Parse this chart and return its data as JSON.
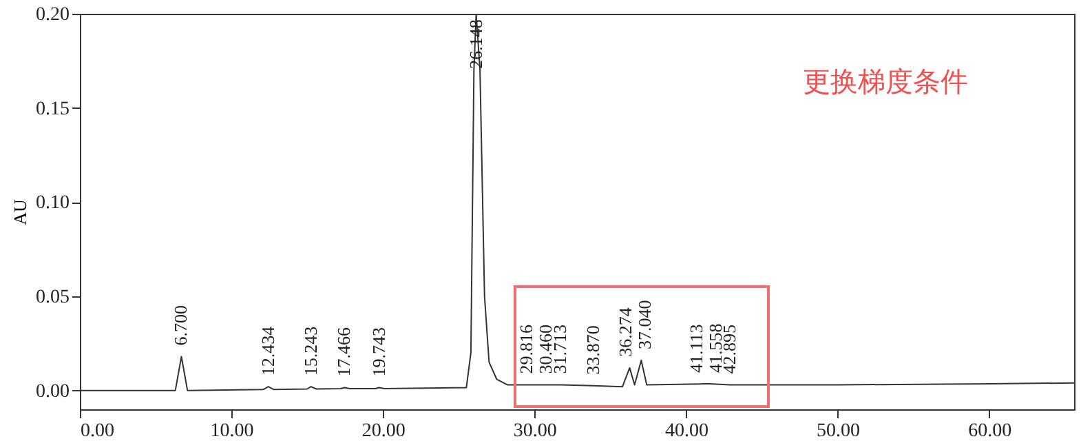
{
  "chart_data": {
    "type": "line",
    "ylabel": "AU",
    "x": [
      0,
      3,
      5,
      6.3,
      6.7,
      7.1,
      12.1,
      12.434,
      12.8,
      15.0,
      15.243,
      15.6,
      17.2,
      17.466,
      17.8,
      19.5,
      19.743,
      20.1,
      25.5,
      25.8,
      26.0,
      26.148,
      26.4,
      26.7,
      27.0,
      27.5,
      28.2,
      29.816,
      30.46,
      31.713,
      33.87,
      35.8,
      36.274,
      36.6,
      37.04,
      37.4,
      41.113,
      41.558,
      42.895,
      50,
      60,
      65.6
    ],
    "series": [
      {
        "color": "#333333",
        "values": [
          0.0,
          0.0,
          0.0,
          0.0,
          0.018,
          0.0,
          0.0005,
          0.002,
          0.0005,
          0.0008,
          0.002,
          0.0008,
          0.001,
          0.0015,
          0.001,
          0.001,
          0.0015,
          0.001,
          0.0015,
          0.02,
          0.17,
          0.2,
          0.17,
          0.05,
          0.015,
          0.006,
          0.003,
          0.003,
          0.003,
          0.003,
          0.0025,
          0.002,
          0.012,
          0.003,
          0.016,
          0.003,
          0.0035,
          0.0035,
          0.003,
          0.003,
          0.0035,
          0.004
        ]
      }
    ],
    "xlim": [
      0,
      65.6
    ],
    "ylim": [
      -0.01,
      0.2
    ],
    "xticks": [
      {
        "value": 0,
        "label": "0.00"
      },
      {
        "value": 10,
        "label": "10.00"
      },
      {
        "value": 20,
        "label": "20.00"
      },
      {
        "value": 30,
        "label": "30.00"
      },
      {
        "value": 40,
        "label": "40.00"
      },
      {
        "value": 50,
        "label": "50.00"
      },
      {
        "value": 60,
        "label": "60.00"
      }
    ],
    "yticks": [
      {
        "value": 0,
        "label": "0.00"
      },
      {
        "value": 0.05,
        "label": "0.05"
      },
      {
        "value": 0.1,
        "label": "0.10"
      },
      {
        "value": 0.15,
        "label": "0.15"
      },
      {
        "value": 0.2,
        "label": "0.20"
      }
    ],
    "grid": false,
    "marker": "none",
    "line_style": "solid",
    "annotations": [
      {
        "text": "6.700",
        "x": 6.7,
        "y": 0.018
      },
      {
        "text": "12.434",
        "x": 12.434,
        "y": 0.002
      },
      {
        "text": "15.243",
        "x": 15.243,
        "y": 0.002
      },
      {
        "text": "17.466",
        "x": 17.466,
        "y": 0.0015
      },
      {
        "text": "19.743",
        "x": 19.743,
        "y": 0.0015
      },
      {
        "text": "26.148",
        "x": 26.148,
        "y": 0.165
      },
      {
        "text": "29.816",
        "x": 29.816,
        "y": 0.003
      },
      {
        "text": "30.460",
        "x": 30.46,
        "y": 0.003
      },
      {
        "text": "31.713",
        "x": 31.713,
        "y": 0.003
      },
      {
        "text": "33.870",
        "x": 33.87,
        "y": 0.0025
      },
      {
        "text": "36.274",
        "x": 36.274,
        "y": 0.012
      },
      {
        "text": "37.040",
        "x": 37.04,
        "y": 0.016
      },
      {
        "text": "41.113",
        "x": 41.113,
        "y": 0.0035
      },
      {
        "text": "41.558",
        "x": 41.558,
        "y": 0.0035
      },
      {
        "text": "42.895",
        "x": 42.895,
        "y": 0.003
      },
      "更换梯度条件"
    ]
  }
}
